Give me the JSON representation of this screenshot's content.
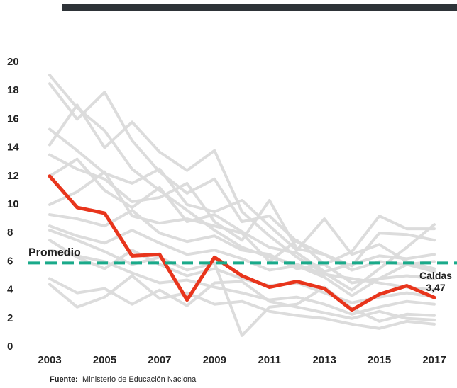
{
  "chart_data": {
    "type": "line",
    "x": [
      2003,
      2004,
      2005,
      2006,
      2007,
      2008,
      2009,
      2010,
      2011,
      2012,
      2013,
      2014,
      2015,
      2016,
      2017
    ],
    "xlim": [
      2003,
      2017
    ],
    "xticks": [
      2003,
      2005,
      2007,
      2009,
      2011,
      2013,
      2015,
      2017
    ],
    "ylim": [
      0,
      20
    ],
    "yticks": [
      0,
      2,
      4,
      6,
      8,
      10,
      12,
      14,
      16,
      18,
      20
    ],
    "series": [
      {
        "color": "#dcdcdc",
        "values": [
          19.1,
          16.8,
          15.2,
          12.5,
          11.0,
          9.6,
          8.2,
          7.0,
          6.3,
          5.8,
          5.1,
          4.8,
          4.5,
          4.2,
          4.0
        ]
      },
      {
        "color": "#dcdcdc",
        "values": [
          18.5,
          16.0,
          17.9,
          14.5,
          12.3,
          10.8,
          11.8,
          8.8,
          9.2,
          7.4,
          6.5,
          5.4,
          6.0,
          5.8,
          5.3
        ]
      },
      {
        "color": "#dcdcdc",
        "values": [
          14.2,
          17.0,
          14.0,
          15.8,
          13.7,
          12.4,
          13.8,
          9.5,
          7.8,
          6.3,
          5.2,
          4.0,
          5.5,
          7.0,
          8.6
        ]
      },
      {
        "color": "#dcdcdc",
        "values": [
          15.3,
          13.8,
          12.2,
          11.5,
          12.5,
          10.0,
          9.5,
          10.3,
          8.5,
          6.8,
          9.0,
          6.5,
          7.2,
          6.0,
          5.5
        ]
      },
      {
        "color": "#dcdcdc",
        "values": [
          13.5,
          12.5,
          11.8,
          10.2,
          10.5,
          11.5,
          8.8,
          7.5,
          10.3,
          6.9,
          6.5,
          5.7,
          8.0,
          7.9,
          7.5
        ]
      },
      {
        "color": "#dcdcdc",
        "values": [
          10.0,
          10.9,
          12.3,
          9.2,
          8.7,
          9.0,
          8.5,
          8.0,
          6.0,
          7.5,
          5.8,
          4.5,
          4.8,
          5.0,
          4.8
        ]
      },
      {
        "color": "#dcdcdc",
        "values": [
          9.3,
          9.0,
          8.5,
          9.6,
          8.0,
          7.4,
          7.8,
          6.8,
          6.5,
          5.5,
          5.8,
          6.7,
          9.2,
          8.3,
          8.3
        ]
      },
      {
        "color": "#dcdcdc",
        "values": [
          8.5,
          7.8,
          7.3,
          8.2,
          7.3,
          6.5,
          6.8,
          6.2,
          5.4,
          5.7,
          4.9,
          3.6,
          4.8,
          5.8,
          6.0
        ]
      },
      {
        "color": "#dcdcdc",
        "values": [
          7.5,
          6.3,
          5.5,
          6.8,
          5.8,
          5.0,
          5.5,
          4.8,
          4.3,
          4.5,
          3.8,
          3.1,
          3.5,
          3.8,
          3.5
        ]
      },
      {
        "color": "#dcdcdc",
        "values": [
          6.8,
          6.4,
          6.0,
          5.2,
          4.5,
          4.7,
          4.2,
          3.8,
          3.3,
          3.5,
          3.0,
          2.3,
          2.8,
          3.2,
          3.0
        ]
      },
      {
        "color": "#dcdcdc",
        "values": [
          4.8,
          3.8,
          4.1,
          3.0,
          4.0,
          2.9,
          4.5,
          4.6,
          3.2,
          2.8,
          2.4,
          2.0,
          2.5,
          2.0,
          1.9
        ]
      },
      {
        "color": "#dcdcdc",
        "values": [
          4.4,
          2.8,
          3.5,
          5.0,
          3.4,
          3.8,
          3.0,
          3.2,
          2.5,
          2.2,
          2.0,
          1.6,
          1.3,
          1.8,
          1.6
        ]
      },
      {
        "color": "#dcdcdc",
        "values": [
          8.2,
          7.5,
          6.7,
          5.8,
          6.3,
          5.4,
          5.9,
          0.8,
          2.8,
          3.0,
          4.2,
          2.7,
          1.8,
          2.3,
          2.2
        ]
      },
      {
        "color": "#dcdcdc",
        "values": [
          12.0,
          13.2,
          11.0,
          9.8,
          11.2,
          8.8,
          9.3,
          8.1,
          7.0,
          6.6,
          5.3,
          5.8,
          6.4,
          6.2,
          6.5
        ]
      },
      {
        "name": "Caldas",
        "color": "#e8351c",
        "highlight": true,
        "values": [
          12.0,
          9.8,
          9.4,
          6.4,
          6.5,
          3.3,
          6.3,
          5.0,
          4.2,
          4.6,
          4.1,
          2.6,
          3.7,
          4.3,
          3.47
        ],
        "value_labels": [
          null,
          null,
          null,
          null,
          null,
          null,
          null,
          null,
          null,
          null,
          null,
          null,
          null,
          null,
          "3,47"
        ]
      }
    ],
    "average": {
      "label": "Promedio",
      "value": 5.9,
      "color": "#1aaa8a"
    },
    "source": {
      "label": "Fuente:",
      "text": "Ministerio de Educación Nacional"
    }
  }
}
